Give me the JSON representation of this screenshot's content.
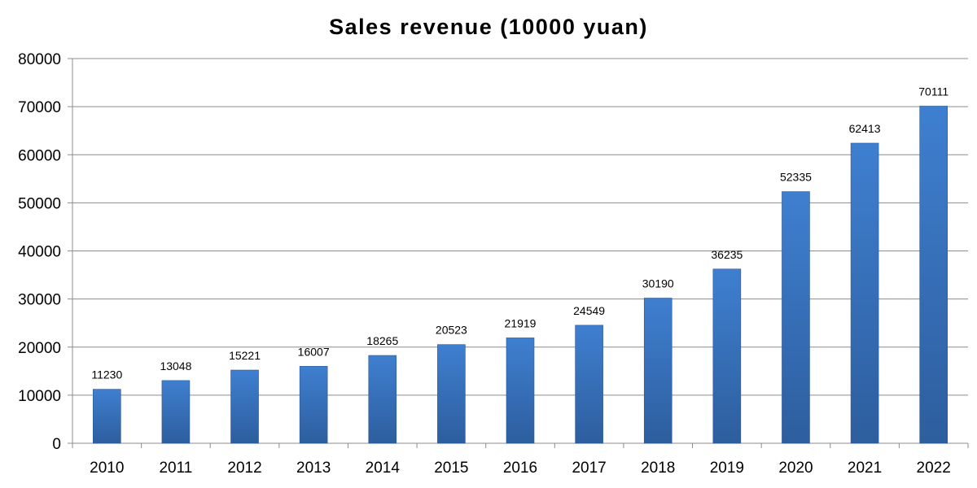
{
  "chart_data": {
    "type": "bar",
    "title": "Sales revenue (10000 yuan)",
    "xlabel": "",
    "ylabel": "",
    "categories": [
      "2010",
      "2011",
      "2012",
      "2013",
      "2014",
      "2015",
      "2016",
      "2017",
      "2018",
      "2019",
      "2020",
      "2021",
      "2022"
    ],
    "values": [
      11230,
      13048,
      15221,
      16007,
      18265,
      20523,
      21919,
      24549,
      30190,
      36235,
      52335,
      62413,
      70111
    ],
    "ylim": [
      0,
      80000
    ],
    "yticks": [
      0,
      10000,
      20000,
      30000,
      40000,
      50000,
      60000,
      70000,
      80000
    ],
    "grid": true,
    "legend": "none",
    "bar_color_top": "#3f7fd0",
    "bar_color_bottom": "#2d5e9e",
    "gridline_color": "#8c8c8c"
  }
}
